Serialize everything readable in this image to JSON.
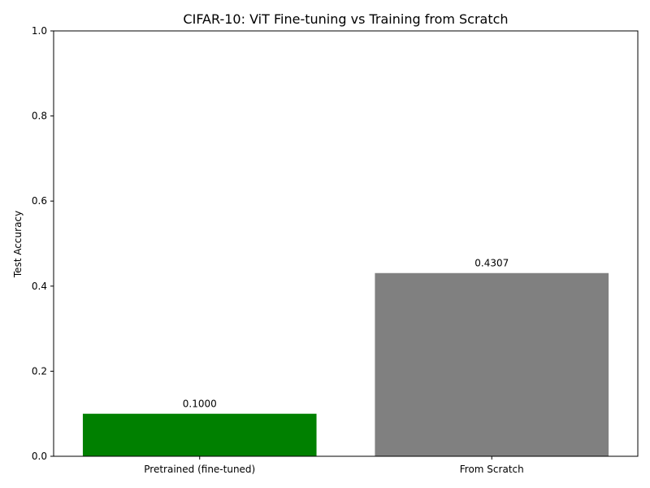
{
  "chart_data": {
    "type": "bar",
    "title": "CIFAR-10: ViT Fine-tuning vs Training from Scratch",
    "xlabel": "",
    "ylabel": "Test Accuracy",
    "categories": [
      "Pretrained (fine-tuned)",
      "From Scratch"
    ],
    "values": [
      0.1,
      0.4307
    ],
    "data_labels": [
      "0.1000",
      "0.4307"
    ],
    "colors": [
      "#008000",
      "#808080"
    ],
    "ylim": [
      0,
      1.0
    ],
    "yticks": [
      0.0,
      0.2,
      0.4,
      0.6,
      0.8,
      1.0
    ],
    "ytick_labels": [
      "0.0",
      "0.2",
      "0.4",
      "0.6",
      "0.8",
      "1.0"
    ],
    "grid": false,
    "legend": "none"
  }
}
